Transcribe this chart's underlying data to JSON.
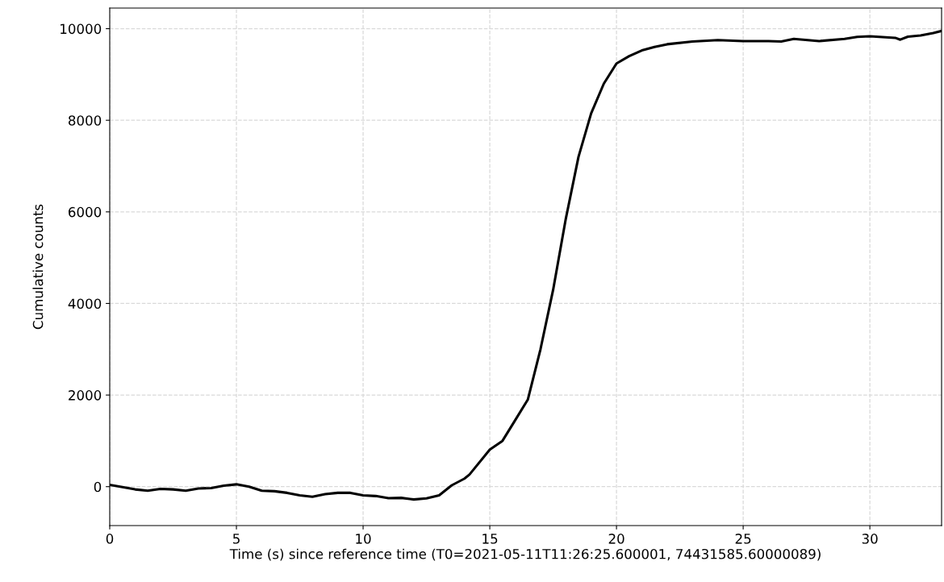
{
  "chart_data": {
    "type": "line",
    "xlabel": "Time (s) since reference time (T0=2021-05-11T11:26:25.600001, 74431585.60000089)",
    "ylabel": "Cumulative counts",
    "x": [
      0,
      1,
      1.5,
      2,
      2.5,
      3,
      3.5,
      4,
      4.5,
      5,
      5.5,
      6,
      6.5,
      7,
      7.5,
      8,
      8.5,
      9,
      9.5,
      10,
      10.5,
      11,
      11.5,
      12,
      12.5,
      13,
      13.5,
      14,
      14.2,
      15,
      15.5,
      16,
      16.5,
      17,
      17.5,
      18,
      18.5,
      19,
      19.5,
      20,
      20.5,
      21,
      21.5,
      22,
      23,
      24,
      25,
      26,
      26.5,
      27,
      28,
      29,
      29.5,
      30,
      31,
      31.2,
      31.5,
      32,
      32.5,
      32.83
    ],
    "series": [
      {
        "color": "#000000",
        "values": [
          40,
          -60,
          -90,
          -50,
          -60,
          -90,
          -40,
          -30,
          20,
          50,
          0,
          -90,
          -100,
          -135,
          -190,
          -220,
          -165,
          -135,
          -135,
          -190,
          -205,
          -250,
          -245,
          -280,
          -255,
          -190,
          30,
          175,
          265,
          810,
          1000,
          1450,
          1900,
          3000,
          4300,
          5850,
          7200,
          8150,
          8800,
          9240,
          9400,
          9525,
          9600,
          9660,
          9720,
          9750,
          9730,
          9730,
          9720,
          9775,
          9730,
          9775,
          9820,
          9835,
          9800,
          9760,
          9825,
          9850,
          9905,
          9950
        ]
      }
    ],
    "xlim": [
      0,
      32.83
    ],
    "ylim": [
      -850,
      10450
    ],
    "xticks": [
      0,
      5,
      10,
      15,
      20,
      25,
      30
    ],
    "yticks": [
      0,
      2000,
      4000,
      6000,
      8000,
      10000
    ],
    "grid": true,
    "line_style": "solid",
    "marker": "none"
  }
}
